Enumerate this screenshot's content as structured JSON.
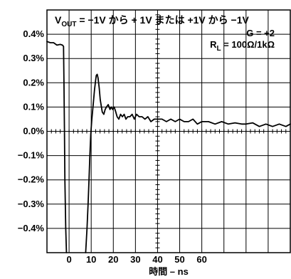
{
  "chart_data": {
    "type": "line",
    "title_parts": [
      "V",
      "OUT",
      " = −1V から + 1V または +1V から −1V"
    ],
    "gain_label": "G = +2",
    "load_parts": [
      "R",
      "L",
      " = 100Ω/1kΩ"
    ],
    "xlabel": "時間 – ns",
    "ylabel": "",
    "x_tick_labels": [
      "0",
      "10",
      "20",
      "30",
      "40",
      "50",
      "60"
    ],
    "x_tick_values": [
      0,
      10,
      20,
      30,
      40,
      50,
      60
    ],
    "y_tick_labels": [
      "0.4%",
      "0.3%",
      "0.2%",
      "0.1%",
      "0.0%",
      "−0.1%",
      "−0.2%",
      "−0.3%",
      "−0.4%"
    ],
    "y_tick_values": [
      0.4,
      0.3,
      0.2,
      0.1,
      0.0,
      -0.1,
      -0.2,
      -0.3,
      -0.4
    ],
    "xlim": [
      -10,
      100
    ],
    "ylim": [
      -0.5,
      0.5
    ],
    "grid": true,
    "series": [
      {
        "x": [
          -10,
          -8.5,
          -7,
          -5.5,
          -4,
          -3,
          -2.5,
          -2.3,
          -2.1,
          -1.9,
          -1.5,
          -1.2
        ],
        "y": [
          0.37,
          0.365,
          0.365,
          0.355,
          0.358,
          0.355,
          0.35,
          0.2,
          0.0,
          -0.2,
          -0.4,
          -0.5
        ]
      },
      {
        "x": [
          7.5,
          8.1,
          8.6,
          9.0,
          9.4,
          9.8,
          10.3,
          11.0,
          11.5,
          12.0,
          12.3,
          12.7,
          13.1,
          13.6,
          14.1,
          15.0,
          15.7,
          16.3,
          16.9,
          17.7,
          18.5,
          19.1,
          19.7,
          20.4,
          21.1,
          21.7,
          22.5,
          23.3,
          24.1,
          24.9,
          25.7,
          26.5,
          27.5,
          28.5,
          29.5,
          30.5,
          31.7,
          33.0,
          34.3,
          35.6,
          37.0,
          38.5,
          40.0,
          42.0,
          44.0,
          46.0,
          48.0,
          50.0,
          52.0,
          54.0,
          56.0,
          58.0,
          60.0,
          63.0,
          66.0,
          69.0,
          72.0,
          75.0,
          78.0,
          80.0,
          83.0,
          86.0,
          89.0,
          92.0,
          95.0,
          98.0,
          100.0
        ],
        "y": [
          -0.5,
          -0.4,
          -0.3,
          -0.2,
          -0.1,
          -0.01,
          0.05,
          0.12,
          0.17,
          0.21,
          0.23,
          0.235,
          0.22,
          0.18,
          0.13,
          0.08,
          0.07,
          0.09,
          0.1,
          0.11,
          0.09,
          0.1,
          0.09,
          0.1,
          0.08,
          0.06,
          0.05,
          0.07,
          0.06,
          0.07,
          0.05,
          0.06,
          0.06,
          0.07,
          0.05,
          0.07,
          0.06,
          0.06,
          0.05,
          0.06,
          0.04,
          0.05,
          0.05,
          0.05,
          0.04,
          0.05,
          0.04,
          0.05,
          0.04,
          0.04,
          0.05,
          0.03,
          0.04,
          0.04,
          0.03,
          0.04,
          0.03,
          0.035,
          0.03,
          0.03,
          0.035,
          0.02,
          0.03,
          0.02,
          0.03,
          0.02,
          0.03
        ]
      }
    ]
  }
}
